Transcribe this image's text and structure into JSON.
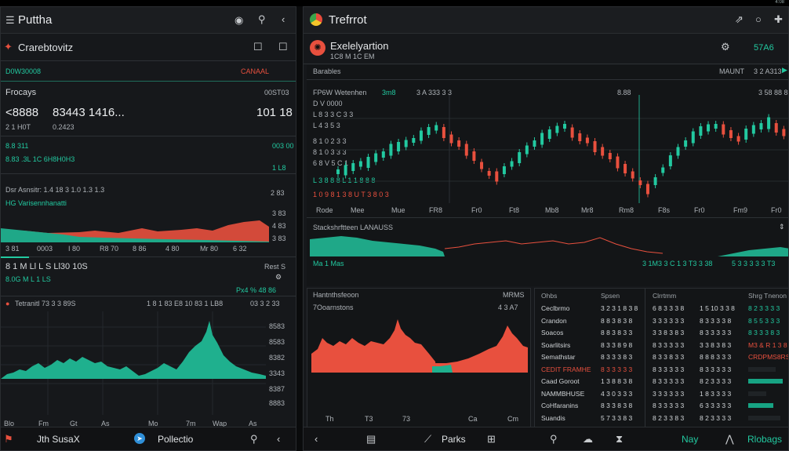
{
  "status_clock": "4:08",
  "left": {
    "title": "Puttha",
    "sub_title": "Crarebtovitz",
    "ticker_green": "D0W30008",
    "ticker_red": "CANAAL",
    "section1": "Frocays",
    "section1_right": "00ST03",
    "price_big_1": "<8888",
    "price_big_2": "83443 1416...",
    "price_big_3": "101 18",
    "price_sub": "2 1 H0T",
    "price_sub2": "0.2423",
    "green_label_1": "8.8 311",
    "green_label_1r": "003 00",
    "green_label_2": "8.83 .3L  1C 6H8H0H3",
    "green_label_2r": "1 L8",
    "chart1_title": "Dsr Asnsitr: 1.4  18  3  1.0  1.3 1.3",
    "chart1_title_r": "2 83",
    "chart1_legend": "HG Varisennhanatti",
    "chart1_ticks_y": [
      "3 83",
      "4 83",
      "3 83"
    ],
    "chart1_ticks_x": [
      "3 81",
      "0003",
      "I 80",
      "R8 70",
      "8 86",
      "4 80",
      "Mr 80",
      "6 32"
    ],
    "mid_text": "8 1 M Ll  L S Ll30 10S",
    "mid_text_r": "Rest S",
    "mid_small": "8.0G  M L  1 LS",
    "mid_small_r": "Px4 % 48 86",
    "chart2_title": "Tetranitl  73 3 3 89S",
    "chart2_title_m": "1 8 1 83 E8 10  83 1 LB8",
    "chart2_title_r": "03 3 2 33",
    "chart2_ticks_y": [
      "8583",
      "8583",
      "8382",
      "3343",
      "8387",
      "8883"
    ],
    "chart2_ticks_x": [
      "Blo",
      "Fm",
      "Gt",
      "As",
      "Mo",
      "7m",
      "Wap",
      "As"
    ],
    "footer_name": "Jth SusaX",
    "footer_app": "Pollectio"
  },
  "right": {
    "title": "Trefrrot",
    "app_name": "Exelelyartion",
    "app_sub": "1C8 M 1C EM",
    "val_r": "57A6",
    "panel_title": "Barables",
    "panel_title_r1": "MAUNT",
    "panel_title_r2": "3 2 A313",
    "chart_header": "FP6W Wetenhen",
    "chart_header_2": "3m8",
    "chart_header_3": "3 A 333 3 3",
    "chart_header_r": "8.88",
    "chart_header_rr": "3 58 88 8",
    "candles_labels": [
      "D V  0000",
      "L 8 3 3 C 3 3",
      "L 4 3 5 3",
      "8 1 0 2 3 3",
      "8 1 0 3 3 3",
      "6 8 V 5 C 1"
    ],
    "candle_note": "L 3 8 8 8 L 1 1 8 8 8",
    "candle_foot": "1 0 9 8 1 3  8 U T 3 8  0 3",
    "x_ticks": [
      "Rode",
      "Mee",
      "Mue",
      "FR8",
      "Fr0",
      "Ft8",
      "Mb8",
      "Mr8",
      "Rm8",
      "F8s",
      "Fr0",
      "Fm9",
      "Fr0"
    ],
    "mid_title": "Stackshrftteen LANAUSS",
    "mid_green": "3 1M3 3  C  1 3 T3 3 38",
    "mid_green_r": "5 3 3 3 3 3  T3",
    "mid_label": "Ma 1 Mas",
    "lower_title": "Hantnthsfeoon",
    "lower_title_r": "MRMS",
    "lower_sub": "7Ooarnstons",
    "lower_sub_r": "4 3 A7",
    "table_header": [
      "Ohbs",
      "Spsen",
      "Clrrtmm",
      "Shrg Tnenon"
    ],
    "table_rows": [
      [
        "Ceclbrmo",
        "3 2 3 1 8 3 8",
        "6 8 3 3 3 8",
        "1 5 10 3 3 8",
        "8 2 3 3 3 3"
      ],
      [
        "Crandon",
        "8 8 3 8 3 8",
        "3 3 3 3 3 3",
        "8 3 3 3 3 8",
        "8 5 5 3 3 3"
      ],
      [
        "Soacos",
        "8 8 3 8 3 3",
        "3 3 8 3 8 3",
        "8 3 3 3 3 3",
        "8 3 3 3 8 3"
      ],
      [
        "Soarlitsirs",
        "8 3 3 8 9 8",
        "8 3 3 3 3 3",
        "3 3 8 3 8 3",
        "M3 & R 1 3 8 8 8 8"
      ],
      [
        "Semathstar",
        "8 3 3 3 8 3",
        "8 3 3 8 3 3",
        "8 8 8 3 3 3",
        "CRDPMS8RS8S"
      ],
      [
        "CEDIT FRAMHE",
        "8 3 3 3 3 3",
        "8 3 3 3 3 3",
        "8 3 3 3 3 3",
        ""
      ],
      [
        "Caad Goroot",
        "1 3 8 8 3 8",
        "8 3 3 3 3 3",
        "8 2 3 3 3 3",
        ""
      ],
      [
        "NAMMBHUSE",
        "4 3 0 3 3 3",
        "3 3 3 3 3 3",
        "1 8 3 3 3 3",
        ""
      ],
      [
        "CoHfaranins",
        "8 3 3 8 3 8",
        "8 3 3 3 3 3",
        "6 3 3 3 3 3",
        ""
      ],
      [
        "Suandis",
        "5 7 3 3 8 3",
        "8 2 3 3 8 3",
        "8 2 3 3 3 3",
        ""
      ]
    ],
    "lower_ticks_x": [
      "Th",
      "T3",
      "73",
      "Ca",
      "Cm"
    ],
    "footer_parks": "Parks",
    "footer_nav": "Nay",
    "footer_right": "Rlobags"
  },
  "colors": {
    "green": "#22c9a0",
    "red": "#e8503e",
    "bg": "#16181b"
  }
}
